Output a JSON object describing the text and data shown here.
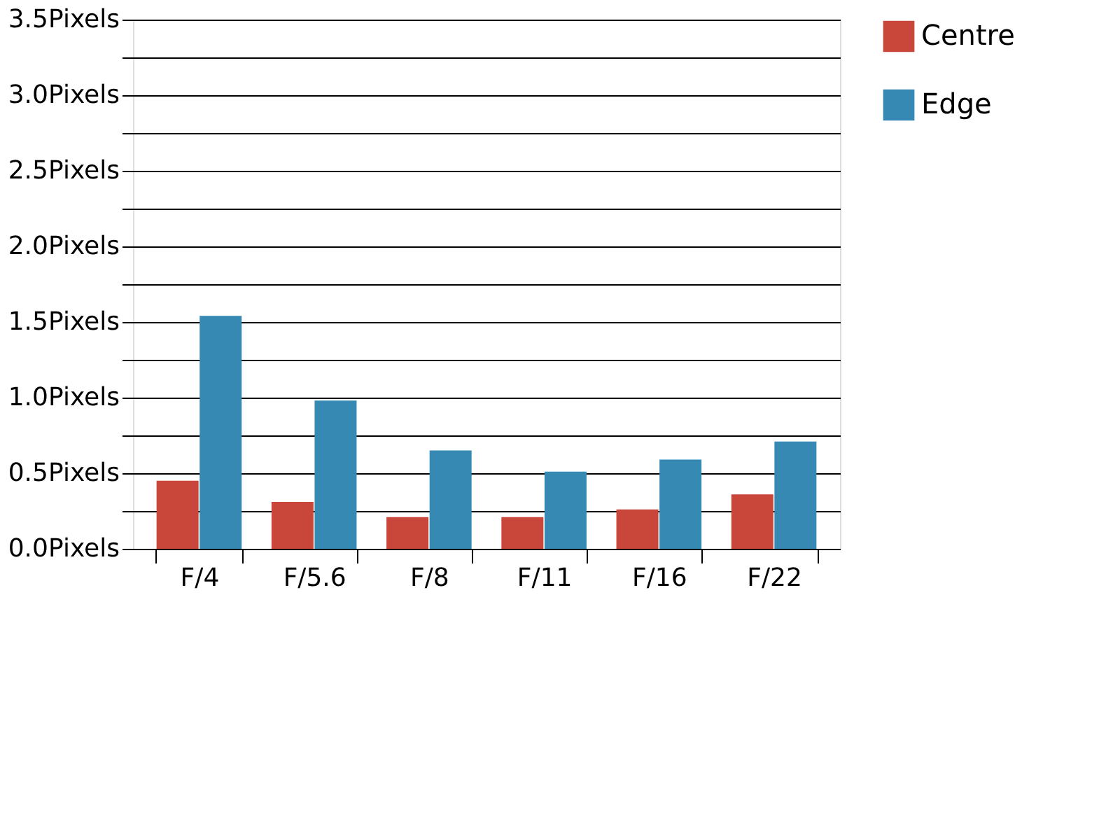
{
  "chart_data": {
    "type": "bar",
    "categories": [
      "F/4",
      "F/5.6",
      "F/8",
      "F/11",
      "F/16",
      "F/22"
    ],
    "series": [
      {
        "name": "Centre",
        "color": "#c8473a",
        "values": [
          0.45,
          0.31,
          0.21,
          0.21,
          0.26,
          0.36
        ]
      },
      {
        "name": "Edge",
        "color": "#3589b3",
        "values": [
          1.54,
          0.98,
          0.65,
          0.51,
          0.59,
          0.71
        ]
      }
    ],
    "ylim": [
      0,
      3.5
    ],
    "yticks": [
      {
        "value": 0,
        "label": "0.0Pixels"
      },
      {
        "value": 0.25,
        "label": null
      },
      {
        "value": 0.5,
        "label": "0.5Pixels"
      },
      {
        "value": 0.75,
        "label": null
      },
      {
        "value": 1,
        "label": "1.0Pixels"
      },
      {
        "value": 1.25,
        "label": null
      },
      {
        "value": 1.5,
        "label": "1.5Pixels"
      },
      {
        "value": 1.75,
        "label": null
      },
      {
        "value": 2,
        "label": "2.0Pixels"
      },
      {
        "value": 2.25,
        "label": null
      },
      {
        "value": 2.5,
        "label": "2.5Pixels"
      },
      {
        "value": 2.75,
        "label": null
      },
      {
        "value": 3,
        "label": "3.0Pixels"
      },
      {
        "value": 3.25,
        "label": null
      },
      {
        "value": 3.5,
        "label": "3.5Pixels"
      }
    ],
    "grid": "y",
    "legend": "top right"
  }
}
